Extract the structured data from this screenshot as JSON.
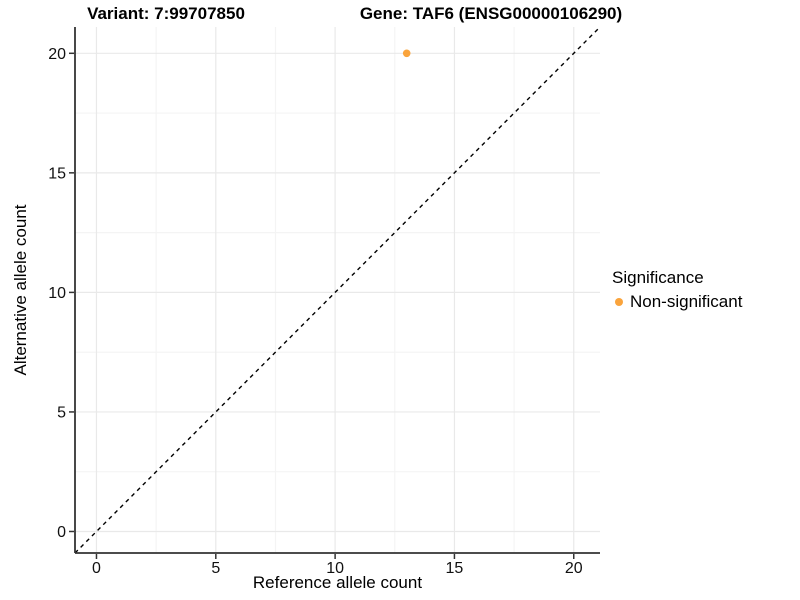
{
  "header": {
    "variant_title": "Variant: 7:99707850",
    "gene_title": "Gene: TAF6 (ENSG00000106290)"
  },
  "chart_data": {
    "type": "scatter",
    "title": "Variant: 7:99707850   Gene: TAF6 (ENSG00000106290)",
    "xlabel": "Reference allele count",
    "ylabel": "Alternative allele count",
    "xlim": [
      -0.9,
      21.1
    ],
    "ylim": [
      -0.9,
      21.1
    ],
    "x_major_ticks": [
      0,
      5,
      10,
      15,
      20
    ],
    "y_major_ticks": [
      0,
      5,
      10,
      15,
      20
    ],
    "x_minor_ticks": [
      2.5,
      7.5,
      12.5,
      17.5
    ],
    "y_minor_ticks": [
      2.5,
      7.5,
      12.5,
      17.5
    ],
    "grid": "major+minor",
    "points": [
      {
        "x": 13,
        "y": 20,
        "series": "Non-significant",
        "color": "#FAA43C"
      }
    ],
    "identity_line": {
      "from": -0.9,
      "to": 21.1,
      "style": "dashed",
      "color": "#000000"
    },
    "legend": {
      "title": "Significance",
      "position": "right",
      "items": [
        {
          "label": "Non-significant",
          "color": "#FAA43C"
        }
      ]
    }
  },
  "style": {
    "background": "#FFFFFF",
    "axis_line_color": "#333333",
    "tick_label_color": "#111111",
    "major_grid_color": "#E9E9E9",
    "minor_grid_color": "#F4F4F4",
    "point_color": "#FAA43C"
  }
}
